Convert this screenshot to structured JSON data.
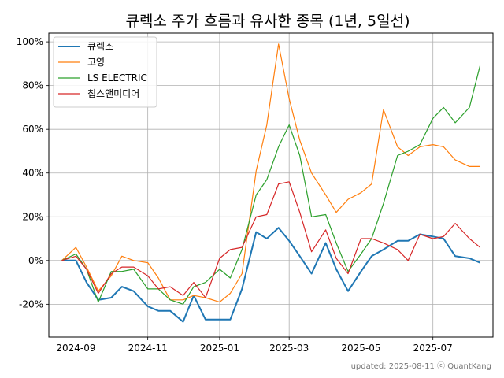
{
  "chart_data": {
    "type": "line",
    "title": "큐렉소 주가 흐름과 유사한 종목 (1년, 5일선)",
    "footer": "updated: 2025-08-11 ⓒ QuantKang",
    "x_tick_labels": [
      "2024-09",
      "2024-11",
      "2025-01",
      "2025-03",
      "2025-05",
      "2025-07"
    ],
    "y_tick_labels": [
      "-20%",
      "0%",
      "20%",
      "40%",
      "60%",
      "80%",
      "100%"
    ],
    "y_ticks": [
      -20,
      0,
      20,
      40,
      60,
      80,
      100
    ],
    "ylim": [
      -35,
      104
    ],
    "grid": true,
    "legend_position": "top-left",
    "x": [
      "2024-08-20",
      "2024-09-01",
      "2024-09-10",
      "2024-09-20",
      "2024-10-01",
      "2024-10-10",
      "2024-10-20",
      "2024-11-01",
      "2024-11-10",
      "2024-11-20",
      "2024-12-01",
      "2024-12-10",
      "2024-12-20",
      "2025-01-01",
      "2025-01-10",
      "2025-01-20",
      "2025-02-01",
      "2025-02-10",
      "2025-02-20",
      "2025-03-01",
      "2025-03-10",
      "2025-03-20",
      "2025-04-01",
      "2025-04-10",
      "2025-04-20",
      "2025-05-01",
      "2025-05-10",
      "2025-05-20",
      "2025-06-01",
      "2025-06-10",
      "2025-06-20",
      "2025-07-01",
      "2025-07-10",
      "2025-07-20",
      "2025-08-01",
      "2025-08-10"
    ],
    "series": [
      {
        "name": "큐렉소",
        "color": "#1f77b4",
        "width": 2,
        "values": [
          0,
          0,
          -10,
          -18,
          -17,
          -12,
          -14,
          -21,
          -23,
          -23,
          -28,
          -16,
          -27,
          -27,
          -27,
          -13,
          13,
          10,
          15,
          9,
          2,
          -6,
          8,
          -4,
          -14,
          -5,
          2,
          5,
          9,
          9,
          12,
          11,
          10,
          2,
          1,
          -1
        ]
      },
      {
        "name": "고영",
        "color": "#ff7f0e",
        "width": 1.2,
        "values": [
          0,
          6,
          -3,
          -14,
          -7,
          2,
          0,
          -1,
          -8,
          -18,
          -18,
          -16,
          -17,
          -19,
          -15,
          -6,
          41,
          62,
          99,
          74,
          55,
          40,
          30,
          22,
          28,
          31,
          35,
          69,
          52,
          48,
          52,
          53,
          52,
          46,
          43,
          43
        ]
      },
      {
        "name": "LS ELECTRIC",
        "color": "#2ca02c",
        "width": 1.2,
        "values": [
          0,
          3,
          -4,
          -19,
          -5,
          -5,
          -4,
          -13,
          -13,
          -18,
          -20,
          -12,
          -10,
          -4,
          -8,
          5,
          30,
          37,
          52,
          62,
          48,
          20,
          21,
          8,
          -5,
          3,
          10,
          26,
          48,
          50,
          53,
          65,
          70,
          63,
          70,
          89
        ]
      },
      {
        "name": "칩스앤미디어",
        "color": "#d62728",
        "width": 1.2,
        "values": [
          0,
          2,
          -4,
          -15,
          -6,
          -3,
          -3,
          -7,
          -13,
          -12,
          -16,
          -10,
          -17,
          1,
          5,
          6,
          20,
          21,
          35,
          36,
          22,
          4,
          14,
          1,
          -6,
          10,
          10,
          8,
          5,
          0,
          12,
          10,
          11,
          17,
          10,
          6
        ]
      }
    ]
  }
}
